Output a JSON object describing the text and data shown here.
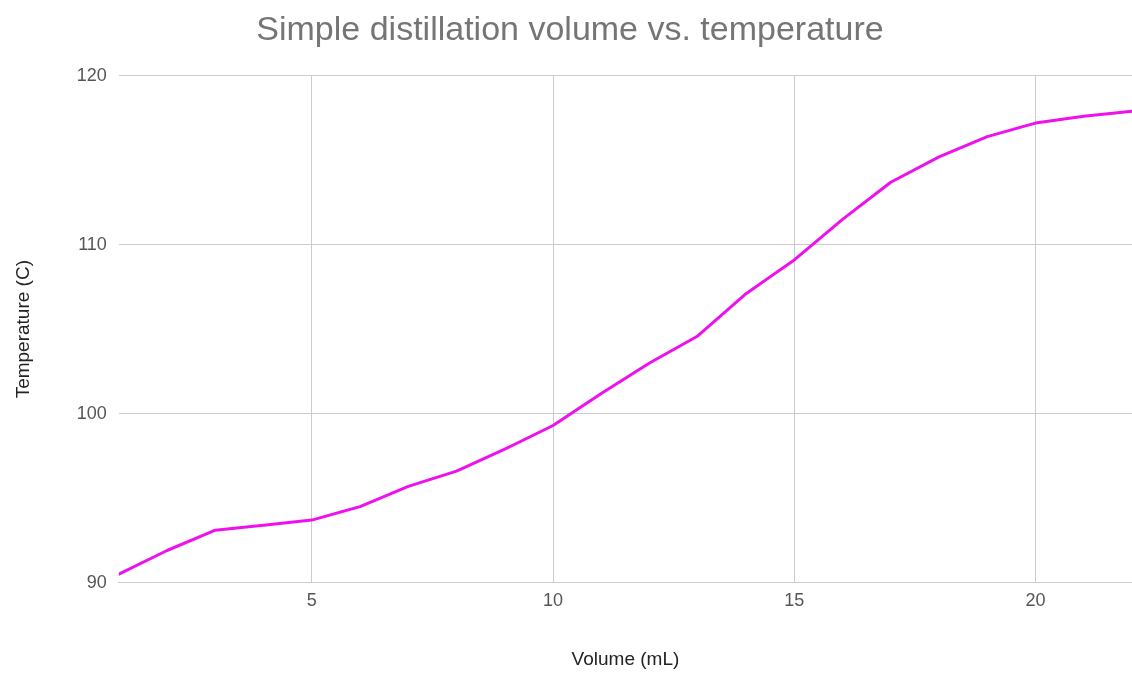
{
  "chart_data": {
    "type": "line",
    "title": "Simple distillation volume vs. temperature",
    "xlabel": "Volume (mL)",
    "ylabel": "Temperature (C)",
    "x": [
      1,
      2,
      3,
      4,
      5,
      6,
      7,
      8,
      9,
      10,
      11,
      12,
      13,
      14,
      15,
      16,
      17,
      18,
      19,
      20,
      21,
      22
    ],
    "series": [
      {
        "color": "#ee11ee",
        "values": [
          90.5,
          91.9,
          93.1,
          93.4,
          93.7,
          94.5,
          95.7,
          96.6,
          97.9,
          99.3,
          101.2,
          103.0,
          104.6,
          107.1,
          109.1,
          111.5,
          113.7,
          115.2,
          116.4,
          117.2,
          117.6,
          117.9
        ]
      }
    ],
    "xlim": [
      1,
      22
    ],
    "ylim": [
      90,
      120
    ],
    "xticks": [
      5,
      10,
      15,
      20
    ],
    "yticks": [
      90,
      100,
      110,
      120
    ],
    "grid": true,
    "marker": "none",
    "line_style": "solid"
  }
}
